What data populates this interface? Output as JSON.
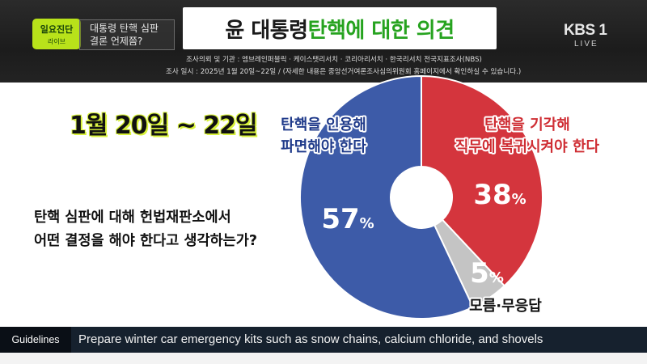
{
  "header": {
    "show_name": "일요진단",
    "show_live": "라이브",
    "topic_line1": "대통령 탄핵 심판",
    "topic_line2": "결론 언제쯤?",
    "title_part1": "윤 대통령 ",
    "title_part2": "탄핵에 대한 의견",
    "broadcaster": "KBS 1",
    "live_label": "LIVE",
    "source_line1": "조사의뢰 및 기관 : 엠브레인퍼블릭 · 케이스탯리서치 · 코리아리서치 · 한국리서치 전국지표조사(NBS)",
    "source_line2": "조사 일시 : 2025년 1월 20일~22일  / (자세한 내용은 중앙선거여론조사심의위원회 홈페이지에서 확인하실 수 있습니다.)"
  },
  "body": {
    "date_range": "1월 20일 ~ 22일",
    "question_line1": "탄핵 심판에 대해 헌법재판소에서",
    "question_line2": "어떤 결정을 해야 한다고 생각하는가?"
  },
  "chart_data": {
    "type": "pie",
    "style": "donut",
    "title": "윤 대통령 탄핵에 대한 의견",
    "unit": "%",
    "slices": [
      {
        "label_line1": "탄핵을 인용해",
        "label_line2": "파면해야 한다",
        "value": 57,
        "color": "#3d5ba8",
        "label_color": "#1f3a8a"
      },
      {
        "label_line1": "탄핵을 기각해",
        "label_line2": "직무에 복귀시켜야 한다",
        "value": 38,
        "color": "#d4353d",
        "label_color": "#cf2d33"
      },
      {
        "label_line1": "모름·무응답",
        "label_line2": "",
        "value": 5,
        "color": "#c4c4c4",
        "label_color": "#111111"
      }
    ]
  },
  "ticker": {
    "tag": "Guidelines",
    "text": "Prepare winter car emergency kits such as snow chains, calcium chloride, and shovels"
  }
}
